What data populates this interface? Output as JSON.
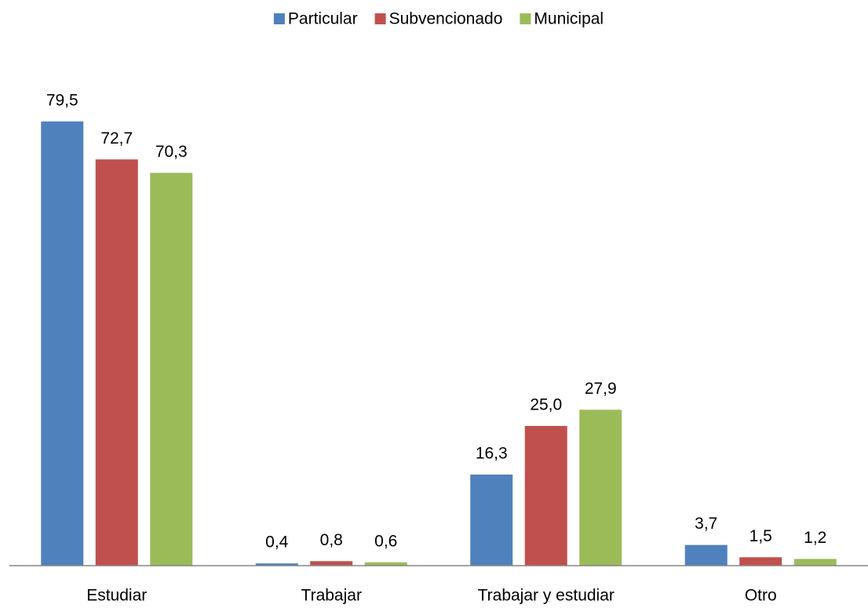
{
  "chart_data": {
    "type": "bar",
    "categories": [
      "Estudiar",
      "Trabajar",
      "Trabajar y estudiar",
      "Otro"
    ],
    "series": [
      {
        "name": "Particular",
        "color": "#4f81bd",
        "values": [
          79.5,
          0.4,
          16.3,
          3.7
        ],
        "value_labels": [
          "79,5",
          "0,4",
          "16,3",
          "3,7"
        ]
      },
      {
        "name": "Subvencionado",
        "color": "#c0504d",
        "values": [
          72.7,
          0.8,
          25.0,
          1.5
        ],
        "value_labels": [
          "72,7",
          "0,8",
          "25,0",
          "1,5"
        ]
      },
      {
        "name": "Municipal",
        "color": "#9bbb59",
        "values": [
          70.3,
          0.6,
          27.9,
          1.2
        ],
        "value_labels": [
          "70,3",
          "0,6",
          "27,9",
          "1,2"
        ]
      }
    ],
    "ylim": [
      0,
      90
    ],
    "legend": "top"
  }
}
